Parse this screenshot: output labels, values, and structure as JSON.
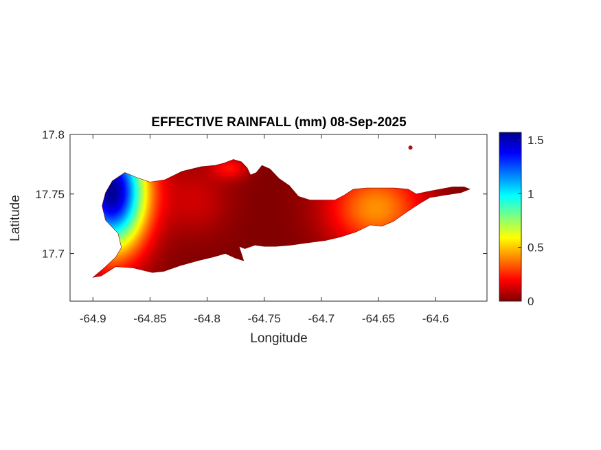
{
  "chart_data": {
    "type": "heatmap",
    "title": "EFFECTIVE RAINFALL (mm) 08-Sep-2025",
    "xlabel": "Longitude",
    "ylabel": "Latitude",
    "xlim": [
      -64.92,
      -64.555
    ],
    "ylim": [
      17.66,
      17.8
    ],
    "xticks": [
      -64.9,
      -64.85,
      -64.8,
      -64.75,
      -64.7,
      -64.65,
      -64.6
    ],
    "xtick_labels": [
      "-64.9",
      "-64.85",
      "-64.8",
      "-64.75",
      "-64.7",
      "-64.65",
      "-64.6"
    ],
    "yticks": [
      17.7,
      17.75,
      17.8
    ],
    "ytick_labels": [
      "17.7",
      "17.75",
      "17.8"
    ],
    "colorbar": {
      "limits": [
        0,
        1.57
      ],
      "ticks": [
        0,
        0.5,
        1,
        1.5
      ],
      "tick_labels": [
        "0",
        "0.5",
        "1",
        "1.5"
      ],
      "colormap": "jet"
    },
    "grid": false,
    "region": "St. Croix island",
    "outline_lonlat": [
      [
        -64.9,
        17.68
      ],
      [
        -64.89,
        17.688
      ],
      [
        -64.88,
        17.697
      ],
      [
        -64.875,
        17.705
      ],
      [
        -64.878,
        17.717
      ],
      [
        -64.889,
        17.728
      ],
      [
        -64.892,
        17.74
      ],
      [
        -64.889,
        17.751
      ],
      [
        -64.883,
        17.761
      ],
      [
        -64.872,
        17.768
      ],
      [
        -64.862,
        17.764
      ],
      [
        -64.85,
        17.76
      ],
      [
        -64.837,
        17.762
      ],
      [
        -64.822,
        17.769
      ],
      [
        -64.805,
        17.773
      ],
      [
        -64.793,
        17.774
      ],
      [
        -64.785,
        17.776
      ],
      [
        -64.777,
        17.779
      ],
      [
        -64.77,
        17.777
      ],
      [
        -64.765,
        17.772
      ],
      [
        -64.762,
        17.766
      ],
      [
        -64.757,
        17.768
      ],
      [
        -64.752,
        17.774
      ],
      [
        -64.745,
        17.771
      ],
      [
        -64.737,
        17.763
      ],
      [
        -64.728,
        17.757
      ],
      [
        -64.72,
        17.748
      ],
      [
        -64.71,
        17.745
      ],
      [
        -64.697,
        17.745
      ],
      [
        -64.688,
        17.745
      ],
      [
        -64.68,
        17.749
      ],
      [
        -64.672,
        17.754
      ],
      [
        -64.66,
        17.755
      ],
      [
        -64.648,
        17.755
      ],
      [
        -64.636,
        17.755
      ],
      [
        -64.624,
        17.754
      ],
      [
        -64.617,
        17.75
      ],
      [
        -64.607,
        17.752
      ],
      [
        -64.596,
        17.754
      ],
      [
        -64.585,
        17.756
      ],
      [
        -64.575,
        17.756
      ],
      [
        -64.57,
        17.754
      ],
      [
        -64.578,
        17.751
      ],
      [
        -64.592,
        17.749
      ],
      [
        -64.605,
        17.747
      ],
      [
        -64.614,
        17.742
      ],
      [
        -64.625,
        17.735
      ],
      [
        -64.637,
        17.727
      ],
      [
        -64.647,
        17.723
      ],
      [
        -64.657,
        17.724
      ],
      [
        -64.67,
        17.718
      ],
      [
        -64.683,
        17.714
      ],
      [
        -64.696,
        17.711
      ],
      [
        -64.712,
        17.709
      ],
      [
        -64.727,
        17.707
      ],
      [
        -64.74,
        17.706
      ],
      [
        -64.75,
        17.706
      ],
      [
        -64.758,
        17.707
      ],
      [
        -64.767,
        17.704
      ],
      [
        -64.772,
        17.706
      ],
      [
        -64.768,
        17.694
      ],
      [
        -64.775,
        17.696
      ],
      [
        -64.784,
        17.7
      ],
      [
        -64.795,
        17.697
      ],
      [
        -64.808,
        17.694
      ],
      [
        -64.823,
        17.69
      ],
      [
        -64.838,
        17.685
      ],
      [
        -64.848,
        17.684
      ],
      [
        -64.865,
        17.688
      ],
      [
        -64.88,
        17.689
      ],
      [
        -64.893,
        17.681
      ],
      [
        -64.9,
        17.68
      ]
    ],
    "hotspots": [
      {
        "lon": -64.884,
        "lat": 17.752,
        "value": 1.57,
        "radius_deg": 0.03,
        "stretch_lat": 1.6
      },
      {
        "lon": -64.652,
        "lat": 17.738,
        "value": 0.42,
        "radius_deg": 0.042,
        "stretch_lat": 0.8
      },
      {
        "lon": -64.78,
        "lat": 17.772,
        "value": 0.2,
        "radius_deg": 0.016,
        "stretch_lat": 0.6
      },
      {
        "lon": -64.81,
        "lat": 17.745,
        "value": 0.12,
        "radius_deg": 0.03,
        "stretch_lat": 1.0
      }
    ],
    "islet": {
      "lon": -64.622,
      "lat": 17.789
    }
  }
}
